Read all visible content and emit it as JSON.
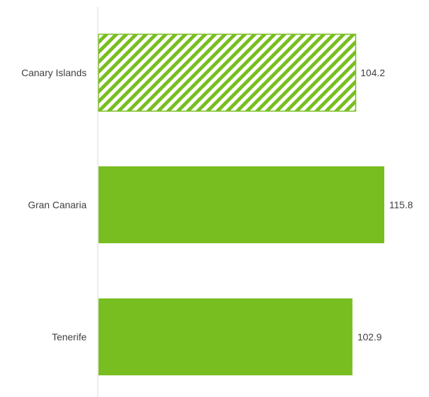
{
  "chart_data": {
    "type": "bar",
    "orientation": "horizontal",
    "categories": [
      "Canary Islands",
      "Gran Canaria",
      "Tenerife"
    ],
    "values": [
      104.2,
      115.8,
      102.9
    ],
    "value_labels": [
      "104.2",
      "115.8",
      "102.9"
    ],
    "xlim": [
      0,
      120
    ],
    "grid": false,
    "legend": "none",
    "styles": [
      "hatched",
      "solid",
      "solid"
    ],
    "colors": {
      "bar": "#78BE20",
      "hatch_background": "#FFFFFF",
      "axis_line": "#D9D9D9",
      "text": "#404040"
    }
  }
}
